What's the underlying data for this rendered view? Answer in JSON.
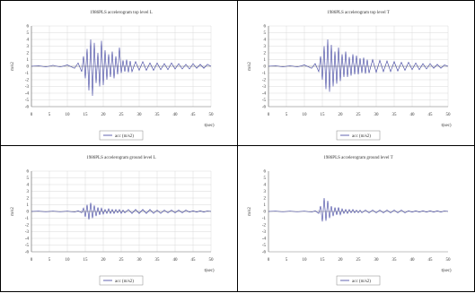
{
  "panels": [
    {
      "title": "1986PLS accelerogram top level L",
      "ylabel": "m/s2",
      "xlabel": "t(sec)",
      "legend": "acc (m/s2)"
    },
    {
      "title": "1986PLS accelerogram top level T",
      "ylabel": "m/s2",
      "xlabel": "t(sec)",
      "legend": "acc (m/s2)"
    },
    {
      "title": "1986PLS accelerogram ground level L",
      "ylabel": "m/s2",
      "xlabel": "t(sec)",
      "legend": "acc (m/s2)"
    },
    {
      "title": "1986PLS accelerogram ground level T",
      "ylabel": "m/s2",
      "xlabel": "t(sec)",
      "legend": "acc (m/s2)"
    }
  ],
  "chart_data": [
    {
      "type": "line",
      "title": "1986PLS accelerogram top level L",
      "xlabel": "t(sec)",
      "ylabel": "m/s2",
      "xlim": [
        0,
        50
      ],
      "ylim": [
        -6,
        6
      ],
      "xticks": [
        0,
        5,
        10,
        15,
        20,
        25,
        30,
        35,
        40,
        45,
        50
      ],
      "yticks": [
        -6,
        -5,
        -4,
        -3,
        -2,
        -1,
        0,
        1,
        2,
        3,
        4,
        5,
        6
      ],
      "grid": true,
      "legend_position": "bottom",
      "series": [
        {
          "name": "acc (m/s2)",
          "color": "#3b3f9e",
          "x": [
            0,
            2,
            4,
            6,
            8,
            10,
            12,
            13,
            14,
            14.5,
            15,
            15.5,
            16,
            16.5,
            17,
            17.5,
            18,
            18.5,
            19,
            19.5,
            20,
            20.5,
            21,
            21.5,
            22,
            22.5,
            23,
            23.5,
            24,
            24.5,
            25,
            25.5,
            26,
            26.5,
            27,
            27.5,
            28,
            29,
            30,
            31,
            32,
            33,
            34,
            35,
            36,
            37,
            38,
            39,
            40,
            41,
            42,
            43,
            44,
            45,
            46,
            47,
            48,
            49,
            50
          ],
          "y": [
            0,
            0.1,
            -0.1,
            0.15,
            -0.1,
            0.2,
            -0.3,
            0.5,
            -0.8,
            1.5,
            -1.8,
            2.6,
            -3.6,
            4.0,
            -4.4,
            3.5,
            -2.5,
            2.0,
            -3.0,
            3.8,
            -2.8,
            2.4,
            -2.0,
            1.8,
            -1.6,
            2.2,
            -1.8,
            1.5,
            -1.2,
            2.8,
            -1.0,
            0.9,
            -0.8,
            1.0,
            -0.9,
            0.8,
            -0.8,
            0.7,
            -0.6,
            0.7,
            -0.6,
            0.5,
            -0.6,
            0.5,
            -0.5,
            0.4,
            -0.5,
            0.5,
            -0.4,
            0.4,
            -0.4,
            0.3,
            -0.4,
            0.4,
            -0.3,
            0.3,
            -0.3,
            0.3,
            0
          ]
        }
      ]
    },
    {
      "type": "line",
      "title": "1986PLS accelerogram top level T",
      "xlabel": "t(sec)",
      "ylabel": "m/s2",
      "xlim": [
        0,
        50
      ],
      "ylim": [
        -6,
        6
      ],
      "xticks": [
        0,
        5,
        10,
        15,
        20,
        25,
        30,
        35,
        40,
        45,
        50
      ],
      "yticks": [
        -6,
        -5,
        -4,
        -3,
        -2,
        -1,
        0,
        1,
        2,
        3,
        4,
        5,
        6
      ],
      "grid": true,
      "legend_position": "bottom",
      "series": [
        {
          "name": "acc (m/s2)",
          "color": "#3b3f9e",
          "x": [
            0,
            2,
            4,
            6,
            8,
            10,
            12,
            13,
            14,
            14.5,
            15,
            15.5,
            16,
            16.5,
            17,
            17.5,
            18,
            18.5,
            19,
            19.5,
            20,
            20.5,
            21,
            21.5,
            22,
            22.5,
            23,
            23.5,
            24,
            24.5,
            25,
            25.5,
            26,
            26.5,
            27,
            27.5,
            28,
            29,
            30,
            31,
            32,
            33,
            34,
            35,
            36,
            37,
            38,
            39,
            40,
            41,
            42,
            43,
            44,
            45,
            46,
            47,
            48,
            49,
            50
          ],
          "y": [
            0,
            0.1,
            -0.1,
            0.1,
            -0.1,
            0.2,
            -0.3,
            0.4,
            -0.8,
            1.5,
            -2.0,
            3.0,
            -3.4,
            4.0,
            -3.8,
            3.2,
            -3.0,
            2.2,
            -2.6,
            2.8,
            -2.2,
            1.8,
            -1.6,
            2.2,
            -1.6,
            1.4,
            -1.4,
            1.8,
            -1.2,
            1.6,
            -1.2,
            1.2,
            -1.0,
            1.3,
            -1.1,
            1.0,
            -1.0,
            1.0,
            -0.9,
            0.9,
            -0.8,
            0.8,
            -0.8,
            0.7,
            -0.7,
            0.6,
            -0.6,
            0.6,
            -0.5,
            0.5,
            -0.5,
            0.4,
            -0.4,
            0.4,
            -0.3,
            0.3,
            -0.3,
            0.2,
            0
          ]
        }
      ]
    },
    {
      "type": "line",
      "title": "1986PLS accelerogram ground level L",
      "xlabel": "t(sec)",
      "ylabel": "m/s2",
      "xlim": [
        0,
        50
      ],
      "ylim": [
        -6,
        6
      ],
      "xticks": [
        0,
        5,
        10,
        15,
        20,
        25,
        30,
        35,
        40,
        45,
        50
      ],
      "yticks": [
        -6,
        -5,
        -4,
        -3,
        -2,
        -1,
        0,
        1,
        2,
        3,
        4,
        5,
        6
      ],
      "grid": true,
      "legend_position": "bottom",
      "series": [
        {
          "name": "acc (m/s2)",
          "color": "#3b3f9e",
          "x": [
            0,
            2,
            4,
            6,
            8,
            10,
            12,
            13,
            14,
            14.5,
            15,
            15.5,
            16,
            16.5,
            17,
            17.5,
            18,
            18.5,
            19,
            19.5,
            20,
            20.5,
            21,
            21.5,
            22,
            22.5,
            23,
            23.5,
            24,
            24.5,
            25,
            25.5,
            26,
            27,
            28,
            29,
            30,
            31,
            32,
            33,
            34,
            35,
            36,
            37,
            38,
            39,
            40,
            41,
            42,
            43,
            44,
            45,
            46,
            47,
            48,
            49,
            50
          ],
          "y": [
            0,
            0.05,
            -0.05,
            0.05,
            -0.05,
            0.05,
            -0.1,
            0.1,
            -0.2,
            0.5,
            -0.8,
            1.0,
            -1.2,
            1.3,
            -1.0,
            0.9,
            -0.7,
            0.6,
            -0.5,
            0.5,
            -0.4,
            0.3,
            -0.3,
            0.4,
            -0.3,
            0.3,
            -0.3,
            0.3,
            -0.2,
            0.3,
            -0.3,
            0.2,
            -0.2,
            0.3,
            -0.3,
            0.3,
            -0.3,
            0.3,
            -0.3,
            0.3,
            -0.3,
            0.2,
            -0.3,
            0.2,
            -0.2,
            0.2,
            -0.2,
            0.2,
            -0.2,
            0.2,
            -0.1,
            0.1,
            -0.1,
            0.1,
            -0.1,
            0.1,
            0
          ]
        }
      ]
    },
    {
      "type": "line",
      "title": "1986PLS accelerogram ground level T",
      "xlabel": "t(sec)",
      "ylabel": "m/s2",
      "xlim": [
        0,
        50
      ],
      "ylim": [
        -6,
        6
      ],
      "xticks": [
        0,
        5,
        10,
        15,
        20,
        25,
        30,
        35,
        40,
        45,
        50
      ],
      "yticks": [
        -6,
        -5,
        -4,
        -3,
        -2,
        -1,
        0,
        1,
        2,
        3,
        4,
        5,
        6
      ],
      "grid": false,
      "legend_position": "bottom",
      "series": [
        {
          "name": "acc (m/s2)",
          "color": "#3b3f9e",
          "x": [
            0,
            2,
            4,
            6,
            8,
            10,
            12,
            13,
            14,
            14.5,
            15,
            15.5,
            16,
            16.5,
            17,
            17.5,
            18,
            18.5,
            19,
            19.5,
            20,
            20.5,
            21,
            21.5,
            22,
            22.5,
            23,
            23.5,
            24,
            24.5,
            25,
            25.5,
            26,
            27,
            28,
            29,
            30,
            31,
            32,
            33,
            34,
            35,
            36,
            37,
            38,
            39,
            40,
            41,
            42,
            43,
            44,
            45,
            46,
            47,
            48,
            49,
            50
          ],
          "y": [
            0,
            0.05,
            -0.05,
            0.05,
            -0.05,
            0.05,
            -0.1,
            0.1,
            -0.3,
            0.8,
            -1.5,
            2.0,
            -1.4,
            1.6,
            -1.0,
            0.8,
            -0.7,
            0.6,
            -0.5,
            0.6,
            -0.5,
            0.4,
            -0.3,
            0.3,
            -0.3,
            0.3,
            -0.2,
            0.3,
            -0.2,
            0.2,
            -0.2,
            0.2,
            -0.2,
            0.2,
            -0.2,
            0.2,
            -0.2,
            0.2,
            -0.2,
            0.2,
            -0.2,
            0.2,
            -0.2,
            0.2,
            -0.2,
            0.1,
            -0.1,
            0.1,
            -0.1,
            0.1,
            -0.1,
            0.1,
            -0.1,
            0.1,
            -0.1,
            0.1,
            0
          ]
        }
      ]
    }
  ]
}
